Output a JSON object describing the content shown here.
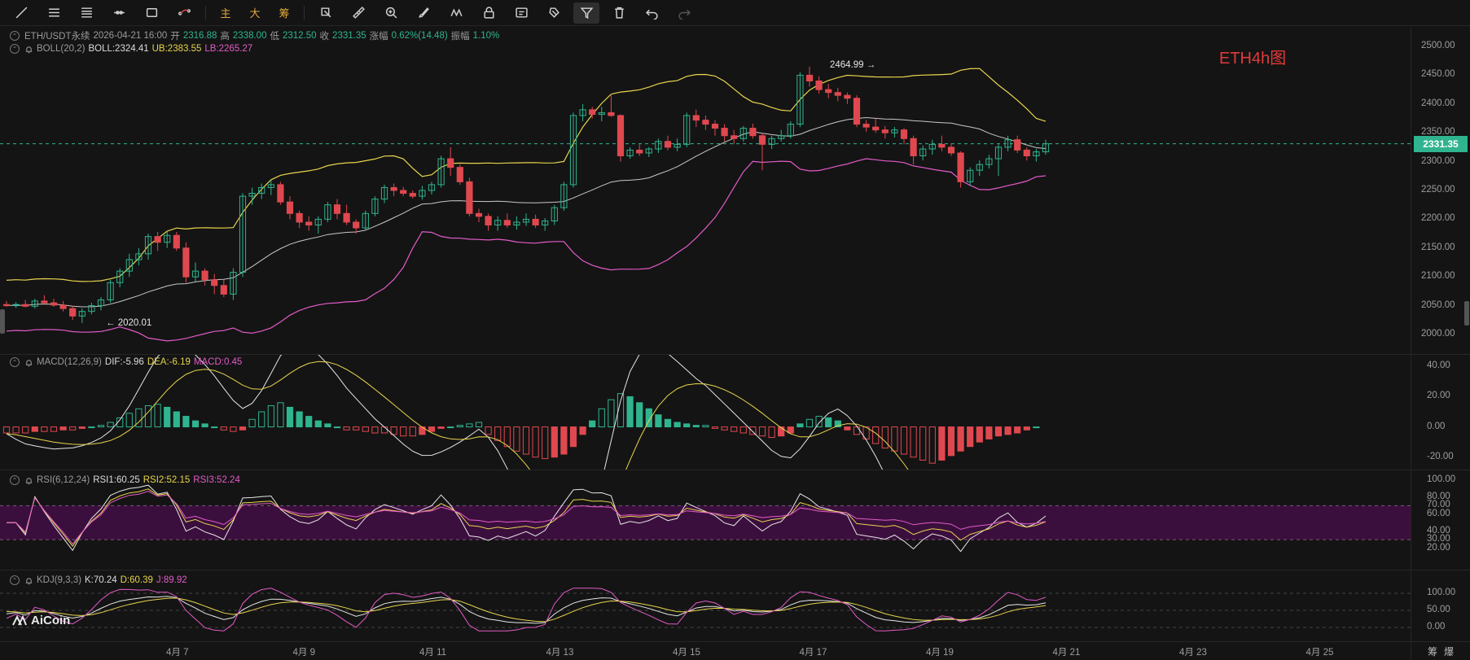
{
  "toolbar": {
    "items": [
      {
        "name": "trendline-tool-icon"
      },
      {
        "name": "horizontal-lines-tool-icon"
      },
      {
        "name": "parallel-lines-tool-icon"
      },
      {
        "name": "ray-tool-icon"
      },
      {
        "name": "rectangle-tool-icon"
      },
      {
        "name": "curve-tool-icon"
      }
    ],
    "text_buttons": [
      "主",
      "大",
      "筹"
    ],
    "tools": [
      {
        "name": "add-shape-icon"
      },
      {
        "name": "ruler-icon"
      },
      {
        "name": "zoom-icon"
      },
      {
        "name": "brush-icon"
      },
      {
        "name": "pattern-icon"
      },
      {
        "name": "lock-icon"
      },
      {
        "name": "template-icon"
      },
      {
        "name": "magnet-icon"
      },
      {
        "name": "filter-icon"
      },
      {
        "name": "delete-icon"
      },
      {
        "name": "undo-icon"
      },
      {
        "name": "redo-icon"
      }
    ]
  },
  "header": {
    "symbol": "ETH/USDT永续",
    "datetime": "2026-04-21 16:00",
    "open_label": "开",
    "open": "2316.88",
    "high_label": "高",
    "high": "2338.00",
    "low_label": "低",
    "low": "2312.50",
    "close_label": "收",
    "close": "2331.35",
    "change_label": "涨幅",
    "change": "0.62%(14.48)",
    "amplitude_label": "振幅",
    "amplitude": "1.10%"
  },
  "chart_title": "ETH4h图",
  "boll": {
    "name": "BOLL(20,2)",
    "boll": "BOLL:2324.41",
    "ub": "UB:2383.55",
    "lb": "LB:2265.27"
  },
  "macd": {
    "name": "MACD(12,26,9)",
    "dif": "DIF:-5.96",
    "dea": "DEA:-6.19",
    "macd": "MACD:0.45"
  },
  "rsi": {
    "name": "RSI(6,12,24)",
    "rsi1": "RSI1:60.25",
    "rsi2": "RSI2:52.15",
    "rsi3": "RSI3:52.24"
  },
  "kdj": {
    "name": "KDJ(9,3,3)",
    "k": "K:70.24",
    "d": "D:60.39",
    "j": "J:89.92"
  },
  "price_axis": [
    "2500.00",
    "2450.00",
    "2400.00",
    "2350.00",
    "2300.00",
    "2250.00",
    "2200.00",
    "2150.00",
    "2100.00",
    "2050.00",
    "2000.00"
  ],
  "current_price": "2331.35",
  "macd_axis": [
    "40.00",
    "20.00",
    "0.00",
    "-20.00"
  ],
  "rsi_axis": [
    "100.00",
    "80.00",
    "70.00",
    "60.00",
    "40.00",
    "30.00",
    "20.00"
  ],
  "kdj_axis": [
    "100.00",
    "50.00",
    "0.00"
  ],
  "high_marker": "2464.99",
  "low_marker": "2020.01",
  "date_axis": [
    "4月 7",
    "4月 9",
    "4月 11",
    "4月 13",
    "4月 15",
    "4月 17",
    "4月 19",
    "4月 21",
    "4月 23",
    "4月 25"
  ],
  "corner_text": [
    "筹",
    "爆"
  ],
  "watermark": "AiCoin",
  "colors": {
    "up": "#2fb48f",
    "down": "#e0484f",
    "boll_mid": "#c8c8c8",
    "boll_ub": "#e8d44d",
    "boll_lb": "#e35bc8",
    "title": "#e23a3a"
  },
  "chart_data": [
    {
      "type": "candlestick",
      "name": "ETH/USDT永续 4h",
      "ylim": [
        2000,
        2500
      ],
      "ohlc": [
        [
          2052,
          2058,
          2048,
          2050
        ],
        [
          2050,
          2056,
          2046,
          2052
        ],
        [
          2052,
          2060,
          2047,
          2049
        ],
        [
          2049,
          2062,
          2045,
          2058
        ],
        [
          2058,
          2068,
          2052,
          2055
        ],
        [
          2055,
          2062,
          2048,
          2051
        ],
        [
          2051,
          2058,
          2040,
          2045
        ],
        [
          2045,
          2050,
          2025,
          2032
        ],
        [
          2032,
          2045,
          2020,
          2040
        ],
        [
          2040,
          2055,
          2035,
          2050
        ],
        [
          2050,
          2065,
          2042,
          2060
        ],
        [
          2060,
          2095,
          2055,
          2090
        ],
        [
          2090,
          2115,
          2082,
          2110
        ],
        [
          2110,
          2140,
          2100,
          2130
        ],
        [
          2130,
          2150,
          2120,
          2140
        ],
        [
          2140,
          2175,
          2130,
          2170
        ],
        [
          2170,
          2178,
          2145,
          2160
        ],
        [
          2160,
          2178,
          2150,
          2172
        ],
        [
          2172,
          2178,
          2145,
          2150
        ],
        [
          2150,
          2160,
          2090,
          2100
        ],
        [
          2100,
          2125,
          2090,
          2110
        ],
        [
          2110,
          2115,
          2085,
          2095
        ],
        [
          2095,
          2105,
          2070,
          2085
        ],
        [
          2085,
          2095,
          2065,
          2070
        ],
        [
          2070,
          2115,
          2060,
          2108
        ],
        [
          2108,
          2245,
          2100,
          2240
        ],
        [
          2240,
          2255,
          2225,
          2245
        ],
        [
          2245,
          2262,
          2235,
          2255
        ],
        [
          2255,
          2268,
          2242,
          2260
        ],
        [
          2260,
          2265,
          2225,
          2230
        ],
        [
          2230,
          2240,
          2200,
          2210
        ],
        [
          2210,
          2215,
          2185,
          2195
        ],
        [
          2195,
          2205,
          2180,
          2190
        ],
        [
          2190,
          2205,
          2175,
          2200
        ],
        [
          2200,
          2230,
          2195,
          2225
        ],
        [
          2225,
          2235,
          2200,
          2210
        ],
        [
          2210,
          2225,
          2190,
          2195
        ],
        [
          2195,
          2200,
          2175,
          2185
        ],
        [
          2185,
          2215,
          2180,
          2210
        ],
        [
          2210,
          2240,
          2205,
          2235
        ],
        [
          2235,
          2260,
          2228,
          2255
        ],
        [
          2255,
          2262,
          2240,
          2250
        ],
        [
          2250,
          2256,
          2240,
          2245
        ],
        [
          2245,
          2250,
          2236,
          2240
        ],
        [
          2240,
          2258,
          2234,
          2250
        ],
        [
          2250,
          2265,
          2243,
          2260
        ],
        [
          2260,
          2310,
          2255,
          2305
        ],
        [
          2305,
          2325,
          2275,
          2290
        ],
        [
          2290,
          2295,
          2260,
          2265
        ],
        [
          2265,
          2272,
          2205,
          2210
        ],
        [
          2210,
          2218,
          2195,
          2205
        ],
        [
          2205,
          2210,
          2180,
          2190
        ],
        [
          2190,
          2205,
          2180,
          2198
        ],
        [
          2198,
          2210,
          2185,
          2190
        ],
        [
          2190,
          2205,
          2182,
          2195
        ],
        [
          2195,
          2210,
          2188,
          2200
        ],
        [
          2200,
          2208,
          2185,
          2190
        ],
        [
          2190,
          2202,
          2180,
          2197
        ],
        [
          2197,
          2225,
          2190,
          2220
        ],
        [
          2220,
          2265,
          2215,
          2260
        ],
        [
          2260,
          2385,
          2255,
          2380
        ],
        [
          2380,
          2400,
          2370,
          2390
        ],
        [
          2390,
          2395,
          2375,
          2382
        ],
        [
          2382,
          2395,
          2370,
          2385
        ],
        [
          2385,
          2418,
          2378,
          2380
        ],
        [
          2380,
          2382,
          2300,
          2310
        ],
        [
          2310,
          2325,
          2305,
          2320
        ],
        [
          2320,
          2330,
          2310,
          2315
        ],
        [
          2315,
          2325,
          2308,
          2322
        ],
        [
          2322,
          2340,
          2315,
          2335
        ],
        [
          2335,
          2345,
          2320,
          2325
        ],
        [
          2325,
          2340,
          2318,
          2330
        ],
        [
          2330,
          2385,
          2325,
          2380
        ],
        [
          2380,
          2390,
          2360,
          2372
        ],
        [
          2372,
          2380,
          2355,
          2365
        ],
        [
          2365,
          2372,
          2345,
          2358
        ],
        [
          2358,
          2365,
          2335,
          2345
        ],
        [
          2345,
          2355,
          2330,
          2340
        ],
        [
          2340,
          2362,
          2335,
          2358
        ],
        [
          2358,
          2366,
          2340,
          2345
        ],
        [
          2345,
          2350,
          2285,
          2330
        ],
        [
          2330,
          2345,
          2322,
          2340
        ],
        [
          2340,
          2355,
          2335,
          2345
        ],
        [
          2345,
          2370,
          2340,
          2365
        ],
        [
          2365,
          2455,
          2360,
          2450
        ],
        [
          2450,
          2465,
          2430,
          2440
        ],
        [
          2440,
          2448,
          2418,
          2425
        ],
        [
          2425,
          2435,
          2410,
          2420
        ],
        [
          2420,
          2428,
          2405,
          2415
        ],
        [
          2415,
          2420,
          2400,
          2410
        ],
        [
          2410,
          2415,
          2360,
          2365
        ],
        [
          2365,
          2372,
          2352,
          2360
        ],
        [
          2360,
          2375,
          2350,
          2355
        ],
        [
          2355,
          2362,
          2340,
          2350
        ],
        [
          2350,
          2360,
          2342,
          2355
        ],
        [
          2355,
          2358,
          2330,
          2340
        ],
        [
          2340,
          2345,
          2295,
          2310
        ],
        [
          2310,
          2328,
          2302,
          2322
        ],
        [
          2322,
          2338,
          2312,
          2330
        ],
        [
          2330,
          2345,
          2318,
          2325
        ],
        [
          2325,
          2332,
          2310,
          2315
        ],
        [
          2315,
          2318,
          2255,
          2265
        ],
        [
          2265,
          2290,
          2258,
          2285
        ],
        [
          2285,
          2302,
          2275,
          2295
        ],
        [
          2295,
          2312,
          2288,
          2305
        ],
        [
          2305,
          2330,
          2275,
          2325
        ],
        [
          2325,
          2345,
          2318,
          2338
        ],
        [
          2338,
          2345,
          2315,
          2320
        ],
        [
          2320,
          2325,
          2302,
          2310
        ],
        [
          2310,
          2322,
          2300,
          2317
        ],
        [
          2317,
          2338,
          2312,
          2331
        ]
      ],
      "boll_last": {
        "mid": 2324.41,
        "ub": 2383.55,
        "lb": 2265.27
      },
      "marked_high": 2464.99,
      "marked_low": 2020.01
    },
    {
      "type": "bar",
      "name": "MACD(12,26,9)",
      "ylim": [
        -25,
        45
      ],
      "macd_hist": [
        -4,
        -4,
        -4,
        -3,
        -3,
        -3,
        -2,
        -2,
        -1,
        0,
        1,
        3,
        6,
        9,
        12,
        14,
        15,
        13,
        10,
        7,
        4,
        2,
        0,
        -2,
        -3,
        -2,
        5,
        10,
        14,
        16,
        13,
        10,
        7,
        4,
        2,
        0,
        -2,
        -2,
        -3,
        -4,
        -4,
        -5,
        -6,
        -6,
        -5,
        -3,
        -1,
        0,
        1,
        2,
        3,
        -5,
        -9,
        -13,
        -16,
        -18,
        -20,
        -21,
        -20,
        -18,
        -13,
        -5,
        4,
        12,
        18,
        22,
        20,
        16,
        12,
        8,
        5,
        3,
        2,
        1,
        1,
        -1,
        -2,
        -3,
        -4,
        -5,
        -6,
        -7,
        -6,
        -4,
        2,
        5,
        7,
        6,
        4,
        -2,
        -5,
        -8,
        -11,
        -14,
        -16,
        -18,
        -20,
        -22,
        -24,
        -22,
        -19,
        -16,
        -13,
        -10,
        -8,
        -6,
        -5,
        -4,
        -2,
        0
      ],
      "dif_last": -5.96,
      "dea_last": -6.19,
      "macd_last": 0.45
    },
    {
      "type": "line",
      "name": "RSI(6,12,24)",
      "ylim": [
        0,
        100
      ],
      "bands": [
        30,
        70
      ],
      "series": [
        {
          "name": "RSI1",
          "last": 60.25
        },
        {
          "name": "RSI2",
          "last": 52.15
        },
        {
          "name": "RSI3",
          "last": 52.24
        }
      ]
    },
    {
      "type": "line",
      "name": "KDJ(9,3,3)",
      "ylim": [
        0,
        100
      ],
      "series": [
        {
          "name": "K",
          "last": 70.24
        },
        {
          "name": "D",
          "last": 60.39
        },
        {
          "name": "J",
          "last": 89.92
        }
      ]
    }
  ]
}
